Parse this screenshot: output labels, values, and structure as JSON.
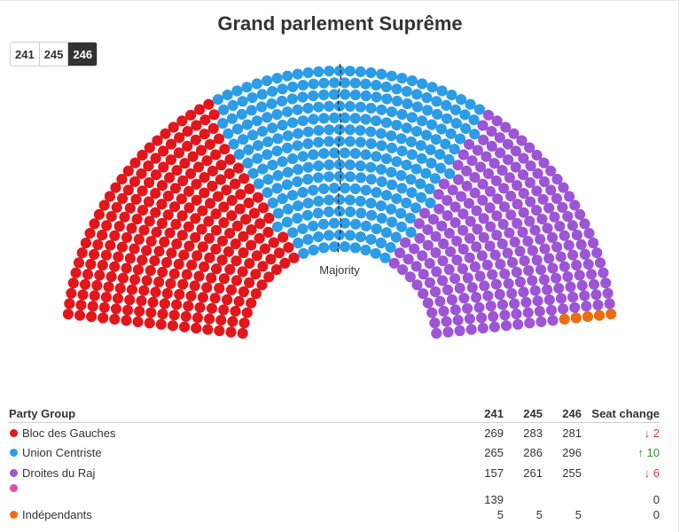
{
  "chart_data": {
    "type": "parliament",
    "title": "Grand parlement Suprême",
    "sessions": [
      "241",
      "245",
      "246"
    ],
    "active_session": "246",
    "majority_label": "Majority",
    "parties": [
      {
        "name": "Bloc des Gauches",
        "color": "#e3161b",
        "seats": {
          "241": "269",
          "245": "283",
          "246": "281"
        },
        "change": "↓ 2",
        "change_dir": "down"
      },
      {
        "name": "Union Centriste",
        "color": "#2d9ce6",
        "seats": {
          "241": "265",
          "245": "286",
          "246": "296"
        },
        "change": "↑ 10",
        "change_dir": "up"
      },
      {
        "name": "Droites du Raj",
        "color": "#9d55d5",
        "seats": {
          "241": "157",
          "245": "261",
          "246": "255"
        },
        "change": "↓ 6",
        "change_dir": "down"
      },
      {
        "name": "",
        "color": "#e0509c",
        "seats": {
          "241": "139",
          "245": "",
          "246": ""
        },
        "change": "0",
        "change_dir": "none"
      },
      {
        "name": "Indépendants",
        "color": "#ee6c10",
        "seats": {
          "241": "5",
          "245": "5",
          "246": "5"
        },
        "change": "0",
        "change_dir": "none"
      }
    ]
  },
  "table": {
    "header_party": "Party Group",
    "header_change": "Seat change"
  }
}
